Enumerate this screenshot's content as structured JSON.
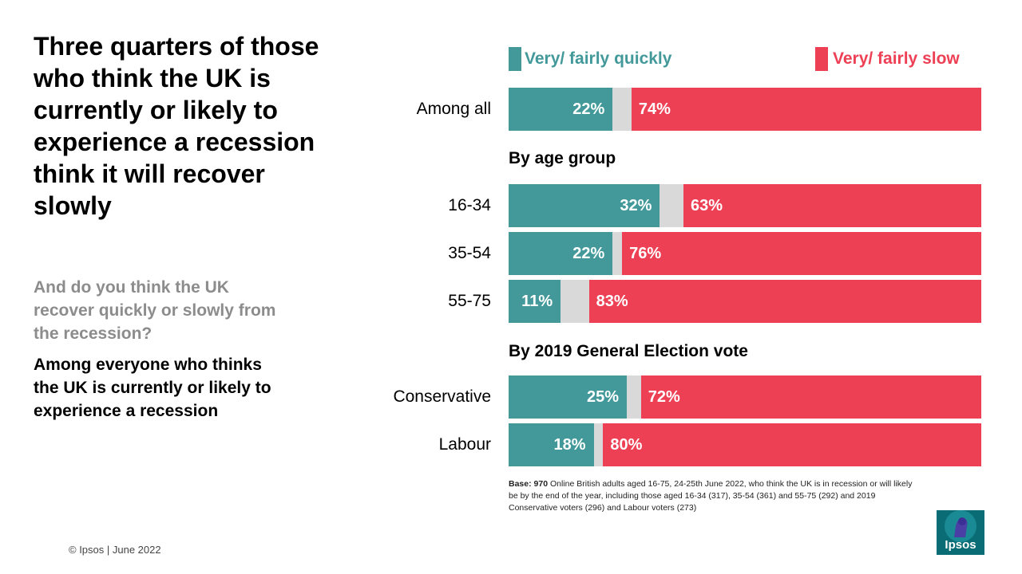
{
  "headline": "Three quarters of those who think the UK is currently or likely to experience a recession think it will recover slowly",
  "question": "And do you think the UK recover quickly or slowly from the recession?",
  "base_note": "Among everyone who thinks the UK is currently or likely to experience a recession",
  "copyright": "© Ipsos | June 2022",
  "logo_text": "Ipsos",
  "colors": {
    "quick": "#43999a",
    "slow": "#ee4055",
    "neutral": "#d9d9d9"
  },
  "footnote": {
    "base_label": "Base: 970",
    "text": " Online British adults aged 16-75, 24-25th June 2022, who think the UK is in recession or will likely be by the end of the year, including those aged 16-34 (317), 35-54 (361) and 55-75 (292) and 2019 Conservative voters (296) and Labour voters (273)"
  },
  "chart_data": {
    "type": "bar",
    "orientation": "horizontal-stacked",
    "legend": {
      "quick": "Very/ fairly quickly",
      "slow": "Very/ fairly slow"
    },
    "sections": [
      "By age group",
      "By 2019 General Election vote"
    ],
    "rows": [
      {
        "label": "Among all",
        "quick": 22,
        "slow": 74,
        "quick_label": "22%",
        "slow_label": "74%"
      },
      {
        "label": "16-34",
        "quick": 32,
        "slow": 63,
        "quick_label": "32%",
        "slow_label": "63%"
      },
      {
        "label": "35-54",
        "quick": 22,
        "slow": 76,
        "quick_label": "22%",
        "slow_label": "76%"
      },
      {
        "label": "55-75",
        "quick": 11,
        "slow": 83,
        "quick_label": "11%",
        "slow_label": "83%"
      },
      {
        "label": "Conservative",
        "quick": 25,
        "slow": 72,
        "quick_label": "25%",
        "slow_label": "72%"
      },
      {
        "label": "Labour",
        "quick": 18,
        "slow": 80,
        "quick_label": "18%",
        "slow_label": "80%"
      }
    ],
    "xlim": [
      0,
      100
    ]
  }
}
